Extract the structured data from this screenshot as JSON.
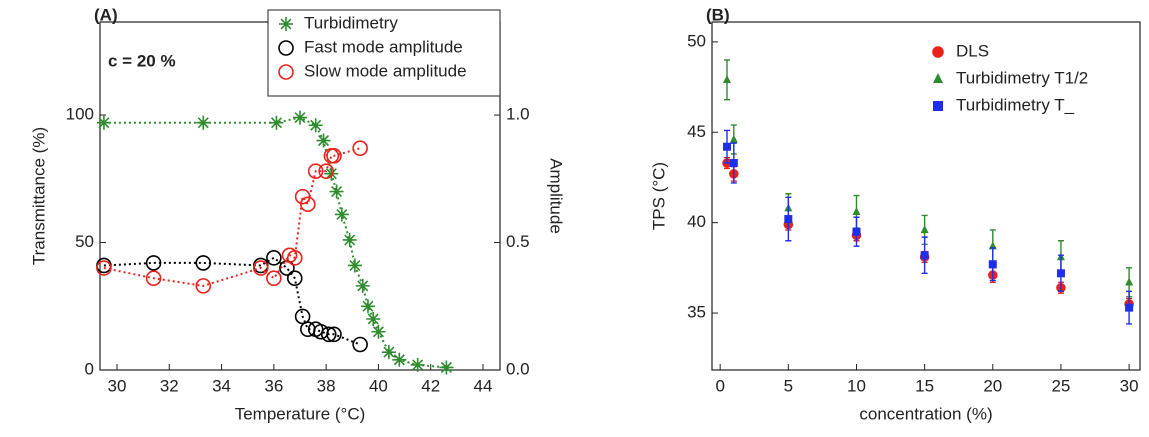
{
  "chart_data": [
    {
      "type": "scatter",
      "title": "(A)",
      "annotation": "c = 20 %",
      "x_label": "Temperature (°C)",
      "y_label": "Transmittance (%)",
      "y2_label": "Amplitude",
      "xlim": [
        29.35,
        44.65
      ],
      "xticks": [
        30,
        32,
        34,
        36,
        38,
        40,
        42,
        44
      ],
      "ylim": [
        0,
        136.5
      ],
      "yticks": [
        0,
        50,
        100
      ],
      "y2lim": [
        0,
        1.365
      ],
      "y2ticks": [
        {
          "value": 0,
          "label": "0.0"
        },
        {
          "value": 0.5,
          "label": "0.5"
        },
        {
          "value": 1,
          "label": "1.0"
        }
      ],
      "legend": "top-right",
      "series": [
        {
          "name": "Turbidimetry",
          "color": "#2e8b2e",
          "marker": "asterisk",
          "line": "dotted",
          "x": [
            29.5,
            33.3,
            36.1,
            37.0,
            37.6,
            37.9,
            38.2,
            38.4,
            38.6,
            38.9,
            39.1,
            39.4,
            39.6,
            39.8,
            40.0,
            40.4,
            40.8,
            41.5,
            42.6
          ],
          "values": [
            97,
            97,
            97,
            99,
            96,
            90,
            77,
            70,
            61,
            51,
            41,
            33,
            25,
            20,
            15,
            7,
            4,
            2,
            1
          ]
        },
        {
          "name": "Fast mode amplitude",
          "color": "#000000",
          "marker": "circle",
          "line": "dotted",
          "axis": "y2",
          "x": [
            29.5,
            31.4,
            33.3,
            35.5,
            36.0,
            36.5,
            36.8,
            37.1,
            37.3,
            37.6,
            37.8,
            38.1,
            38.3,
            39.3
          ],
          "values": [
            0.41,
            0.42,
            0.42,
            0.41,
            0.44,
            0.4,
            0.36,
            0.21,
            0.16,
            0.16,
            0.15,
            0.14,
            0.14,
            0.1
          ]
        },
        {
          "name": "Slow mode amplitude",
          "color": "#e8231c",
          "marker": "circle",
          "line": "dotted",
          "axis": "y2",
          "x": [
            29.5,
            31.4,
            33.3,
            35.5,
            36.0,
            36.6,
            36.8,
            37.1,
            37.3,
            37.6,
            38.0,
            38.2,
            38.3,
            39.3
          ],
          "values": [
            0.4,
            0.36,
            0.33,
            0.4,
            0.36,
            0.45,
            0.44,
            0.68,
            0.65,
            0.78,
            0.78,
            0.84,
            0.84,
            0.87
          ]
        }
      ]
    },
    {
      "type": "errorbar",
      "title": "(B)",
      "x_label": "concentration (%)",
      "y_label": "TPS (°C)",
      "xlim": [
        -0.6,
        30.8
      ],
      "xticks": [
        0,
        5,
        10,
        15,
        20,
        25,
        30
      ],
      "ylim": [
        31.85,
        51.1
      ],
      "yticks": [
        35,
        40,
        45,
        50
      ],
      "legend": "top-right",
      "x": [
        0.5,
        1,
        5,
        10,
        15,
        20,
        25,
        30
      ],
      "series": [
        {
          "name": "DLS",
          "color": "#e8231c",
          "marker": "circle",
          "values": [
            43.3,
            42.7,
            39.9,
            39.3,
            38.1,
            37.1,
            36.4,
            35.5
          ],
          "errors": [
            0.3,
            0.4,
            0.3,
            0.3,
            0.3,
            0.4,
            0.3,
            0.3
          ]
        },
        {
          "name": "Turbidimetry T1/2",
          "color": "#2e8b2e",
          "marker": "triangle",
          "values": [
            47.9,
            44.6,
            40.8,
            40.6,
            39.6,
            38.7,
            38.1,
            36.7
          ],
          "errors": [
            1.1,
            0.8,
            0.8,
            0.9,
            0.8,
            0.9,
            0.9,
            0.8
          ]
        },
        {
          "name": "Turbidimetry T_",
          "color": "#1f2ee8",
          "marker": "square",
          "values": [
            44.2,
            43.3,
            40.2,
            39.5,
            38.2,
            37.7,
            37.2,
            35.3
          ],
          "errors": [
            0.9,
            1.1,
            1.2,
            0.8,
            1.0,
            0.9,
            1.0,
            0.9
          ]
        }
      ]
    }
  ]
}
